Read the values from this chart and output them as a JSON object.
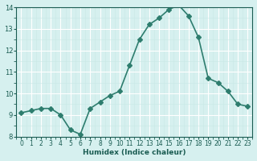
{
  "x": [
    0,
    1,
    2,
    3,
    4,
    5,
    6,
    7,
    8,
    9,
    10,
    11,
    12,
    13,
    14,
    15,
    16,
    17,
    18,
    19,
    20,
    21,
    22,
    23
  ],
  "y": [
    9.1,
    9.2,
    9.3,
    9.3,
    9.0,
    8.3,
    8.1,
    9.3,
    9.6,
    9.9,
    10.1,
    11.3,
    12.5,
    13.2,
    13.5,
    13.9,
    14.1,
    13.6,
    12.6,
    10.7,
    10.5,
    10.1,
    9.5,
    9.4
  ],
  "xlabel": "Humidex (Indice chaleur)",
  "ylim": [
    8,
    14
  ],
  "xlim": [
    -0.5,
    23.5
  ],
  "yticks": [
    8,
    9,
    10,
    11,
    12,
    13,
    14
  ],
  "xticks": [
    0,
    1,
    2,
    3,
    4,
    5,
    6,
    7,
    8,
    9,
    10,
    11,
    12,
    13,
    14,
    15,
    16,
    17,
    18,
    19,
    20,
    21,
    22,
    23
  ],
  "line_color": "#2e7d6e",
  "marker": "D",
  "marker_size": 3,
  "bg_color": "#d6f0ef",
  "grid_major_color": "#ffffff",
  "grid_minor_color": "#c8e8e6",
  "label_color": "#1a5c52",
  "tick_color": "#1a5c52"
}
